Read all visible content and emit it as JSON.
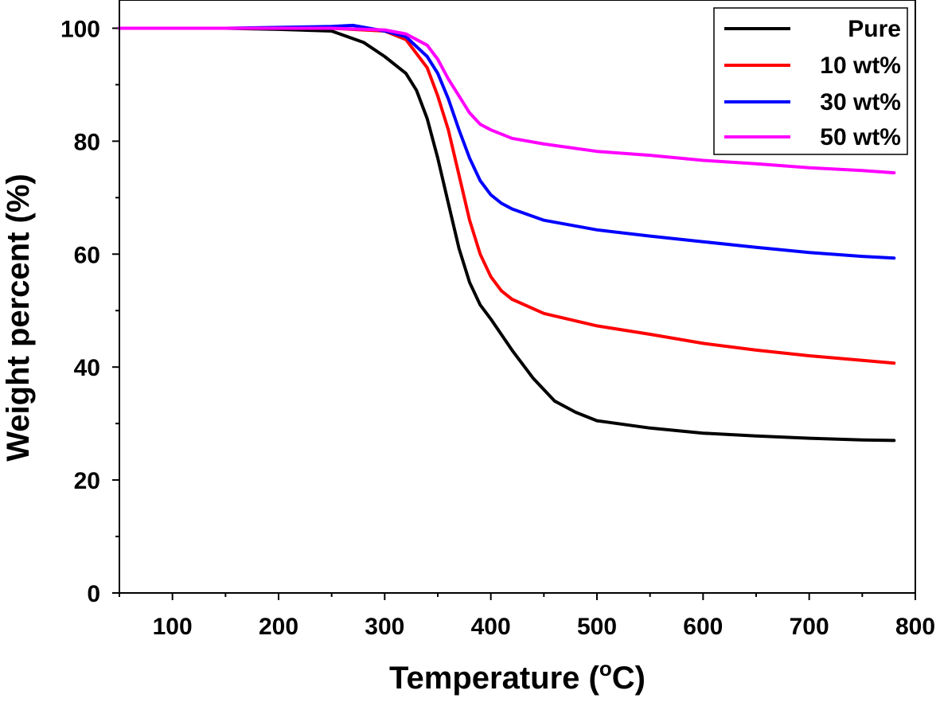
{
  "chart_data": {
    "type": "line",
    "title": "",
    "xlabel": "Temperature (",
    "xlabel_unit_sup": "o",
    "xlabel_unit": "C)",
    "ylabel": "Weight percent (%)",
    "xlim": [
      50,
      800
    ],
    "ylim": [
      0,
      105
    ],
    "xticks": [
      100,
      200,
      300,
      400,
      500,
      600,
      700,
      800
    ],
    "yticks": [
      0,
      20,
      40,
      60,
      80,
      100
    ],
    "grid": false,
    "legend_position": "top-right",
    "series": [
      {
        "name": "Pure",
        "color": "#000000",
        "x": [
          50,
          150,
          200,
          250,
          280,
          300,
          320,
          330,
          340,
          350,
          360,
          370,
          380,
          390,
          400,
          420,
          440,
          460,
          480,
          500,
          550,
          600,
          650,
          700,
          750,
          780
        ],
        "y": [
          100,
          100,
          99.8,
          99.5,
          97.5,
          95,
          92,
          89,
          84,
          77,
          69,
          61,
          55,
          51,
          48.5,
          43,
          38,
          34,
          32,
          30.5,
          29.2,
          28.3,
          27.8,
          27.4,
          27.1,
          27
        ]
      },
      {
        "name": "10 wt%",
        "color": "#ff0000",
        "x": [
          50,
          150,
          250,
          300,
          320,
          340,
          350,
          360,
          370,
          380,
          390,
          400,
          410,
          420,
          450,
          500,
          550,
          600,
          650,
          700,
          750,
          780
        ],
        "y": [
          100,
          100,
          100,
          99.5,
          98,
          93,
          88,
          82,
          74,
          66,
          60,
          56,
          53.5,
          52,
          49.5,
          47.3,
          45.8,
          44.2,
          43,
          42,
          41.2,
          40.7
        ]
      },
      {
        "name": "30 wt%",
        "color": "#0000ff",
        "x": [
          50,
          150,
          250,
          270,
          300,
          320,
          340,
          350,
          360,
          370,
          380,
          390,
          400,
          410,
          420,
          450,
          500,
          550,
          600,
          650,
          700,
          750,
          780
        ],
        "y": [
          100,
          100,
          100.3,
          100.5,
          99.5,
          98.5,
          95,
          92,
          87.5,
          82,
          77,
          73,
          70.5,
          69,
          68,
          66,
          64.3,
          63.2,
          62.2,
          61.2,
          60.3,
          59.6,
          59.3
        ]
      },
      {
        "name": "50 wt%",
        "color": "#ff00ff",
        "x": [
          50,
          150,
          250,
          300,
          320,
          340,
          350,
          360,
          370,
          380,
          390,
          400,
          420,
          450,
          500,
          550,
          600,
          650,
          700,
          750,
          780
        ],
        "y": [
          100,
          100,
          100,
          99.7,
          99,
          97,
          94.5,
          91,
          88,
          85,
          83,
          82,
          80.5,
          79.5,
          78.2,
          77.5,
          76.6,
          76,
          75.3,
          74.8,
          74.4
        ]
      }
    ]
  }
}
